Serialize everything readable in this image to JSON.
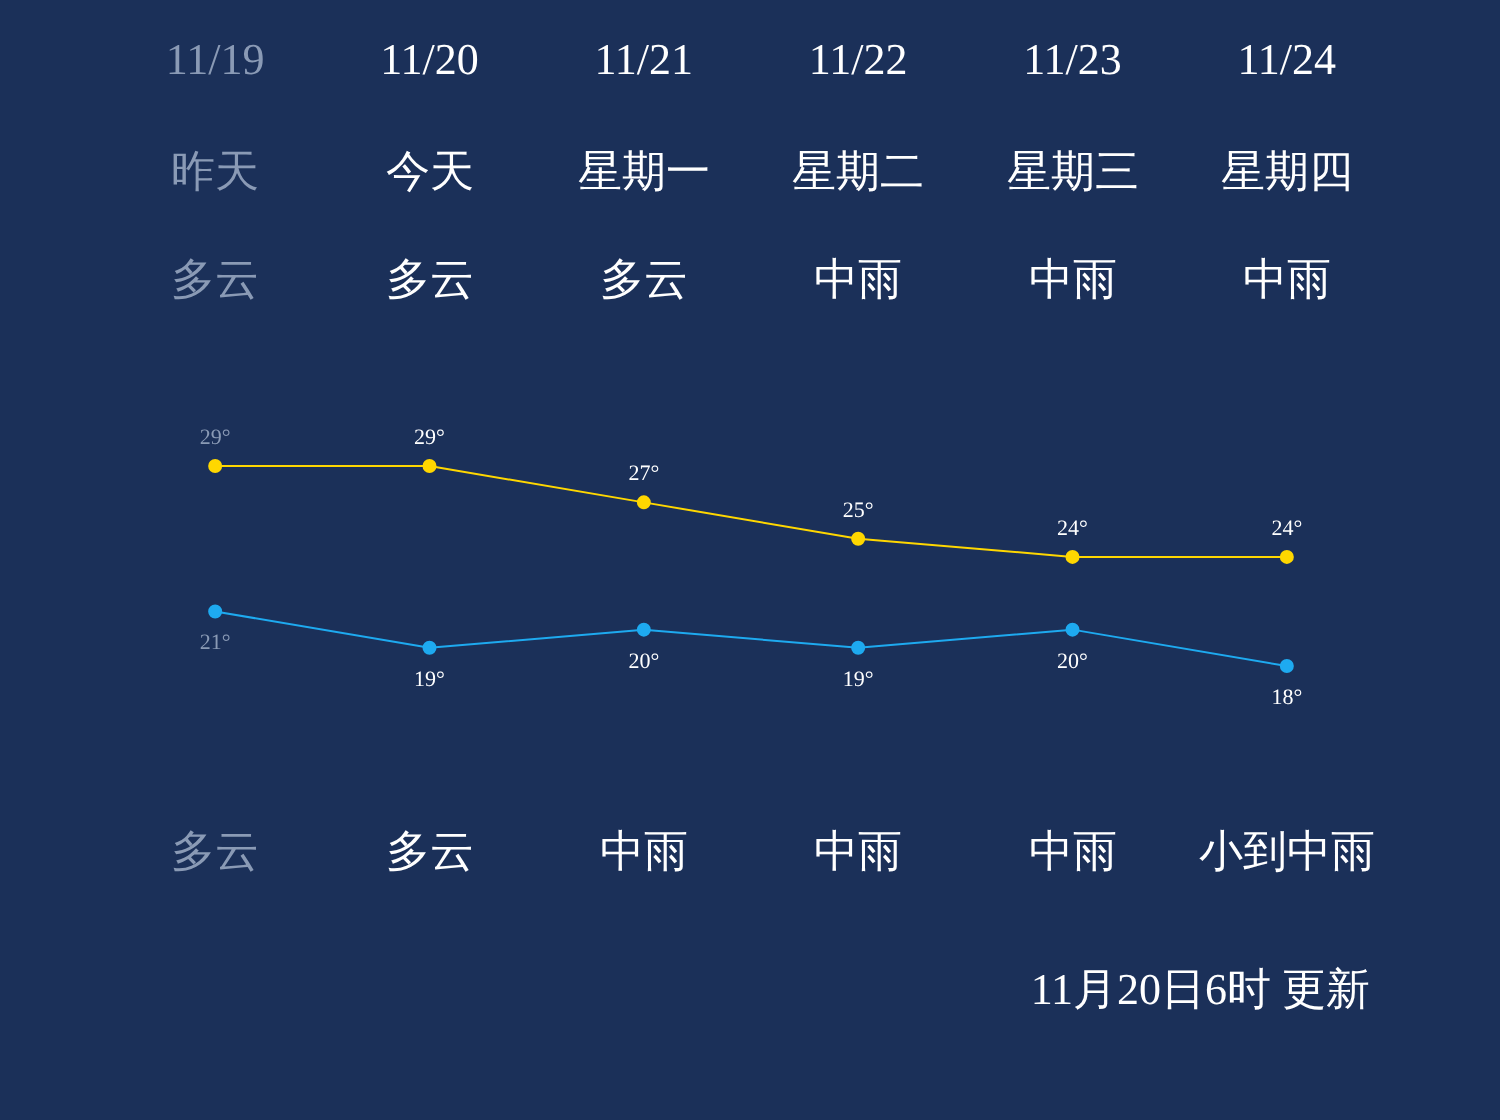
{
  "chart_data": {
    "type": "line",
    "categories": [
      "11/19",
      "11/20",
      "11/21",
      "11/22",
      "11/23",
      "11/24"
    ],
    "series": [
      {
        "color": "#ffd700",
        "values": [
          29,
          29,
          27,
          25,
          24,
          24
        ],
        "value_labels": [
          "29°",
          "29°",
          "27°",
          "25°",
          "24°",
          "24°"
        ]
      },
      {
        "color": "#1eaaf0",
        "values": [
          21,
          19,
          20,
          19,
          20,
          18
        ],
        "value_labels": [
          "21°",
          "19°",
          "20°",
          "19°",
          "20°",
          "18°"
        ]
      }
    ],
    "marker": "circle",
    "legend": false,
    "grid": false,
    "tick_labels": false,
    "annotations": [
      "昨天",
      "今天",
      "星期一",
      "星期二",
      "星期三",
      "星期四",
      "多云",
      "多云",
      "多云",
      "中雨",
      "中雨",
      "中雨",
      "多云",
      "多云",
      "中雨",
      "中雨",
      "中雨",
      "小到中雨",
      "11月20日6时 更新"
    ]
  }
}
